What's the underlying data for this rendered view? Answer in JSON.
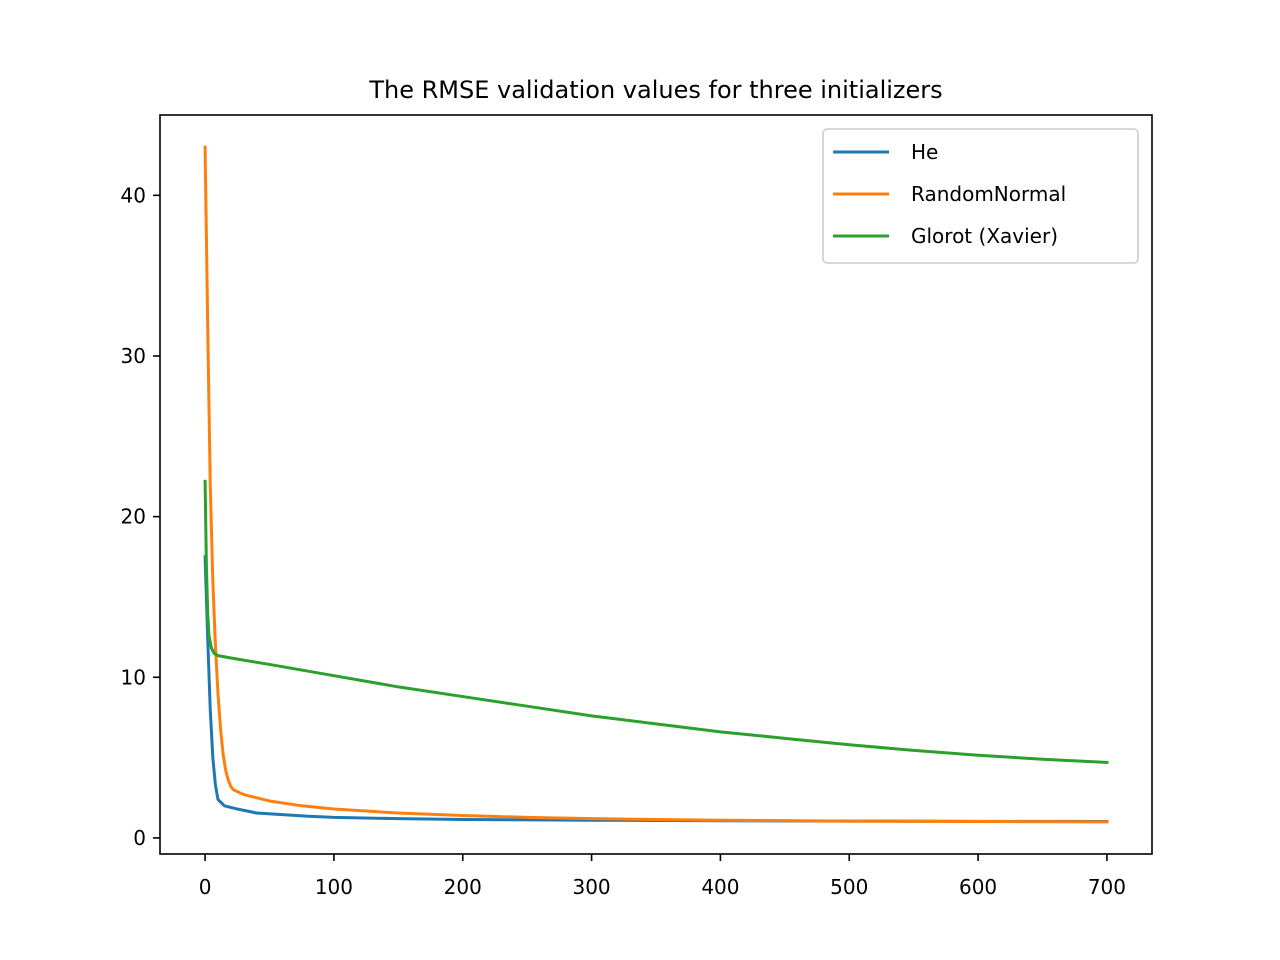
{
  "chart_data": {
    "type": "line",
    "title": "The RMSE validation values for three initializers",
    "xlabel": "",
    "ylabel": "",
    "xlim": [
      -35,
      735
    ],
    "ylim": [
      -1,
      45
    ],
    "xticks": [
      0,
      100,
      200,
      300,
      400,
      500,
      600,
      700
    ],
    "yticks": [
      0,
      10,
      20,
      30,
      40
    ],
    "grid": false,
    "legend_position": "top-right",
    "series": [
      {
        "name": "He",
        "color": "#1f77b4",
        "points": [
          [
            0,
            17.5
          ],
          [
            2,
            12.5
          ],
          [
            4,
            8.0
          ],
          [
            6,
            5.0
          ],
          [
            8,
            3.3
          ],
          [
            10,
            2.4
          ],
          [
            15,
            2.0
          ],
          [
            25,
            1.8
          ],
          [
            40,
            1.55
          ],
          [
            60,
            1.45
          ],
          [
            80,
            1.35
          ],
          [
            100,
            1.28
          ],
          [
            150,
            1.2
          ],
          [
            200,
            1.15
          ],
          [
            300,
            1.1
          ],
          [
            400,
            1.07
          ],
          [
            500,
            1.05
          ],
          [
            600,
            1.03
          ],
          [
            700,
            1.02
          ]
        ]
      },
      {
        "name": "RandomNormal",
        "color": "#ff7f0e",
        "points": [
          [
            0,
            43.0
          ],
          [
            2,
            32.0
          ],
          [
            4,
            22.0
          ],
          [
            6,
            16.0
          ],
          [
            8,
            12.0
          ],
          [
            10,
            9.0
          ],
          [
            12,
            6.8
          ],
          [
            14,
            5.2
          ],
          [
            16,
            4.2
          ],
          [
            18,
            3.6
          ],
          [
            20,
            3.2
          ],
          [
            22,
            3.0
          ],
          [
            30,
            2.7
          ],
          [
            50,
            2.3
          ],
          [
            75,
            2.0
          ],
          [
            100,
            1.8
          ],
          [
            150,
            1.55
          ],
          [
            200,
            1.4
          ],
          [
            250,
            1.28
          ],
          [
            300,
            1.2
          ],
          [
            400,
            1.1
          ],
          [
            500,
            1.05
          ],
          [
            600,
            1.02
          ],
          [
            700,
            1.0
          ]
        ]
      },
      {
        "name": "Glorot (Xavier)",
        "color": "#2ca02c",
        "points": [
          [
            0,
            22.2
          ],
          [
            1,
            17.0
          ],
          [
            2,
            14.0
          ],
          [
            3,
            12.6
          ],
          [
            5,
            11.8
          ],
          [
            7,
            11.5
          ],
          [
            10,
            11.35
          ],
          [
            20,
            11.2
          ],
          [
            50,
            10.8
          ],
          [
            100,
            10.1
          ],
          [
            150,
            9.4
          ],
          [
            200,
            8.8
          ],
          [
            250,
            8.2
          ],
          [
            300,
            7.6
          ],
          [
            350,
            7.1
          ],
          [
            400,
            6.6
          ],
          [
            450,
            6.2
          ],
          [
            500,
            5.8
          ],
          [
            550,
            5.45
          ],
          [
            600,
            5.15
          ],
          [
            650,
            4.9
          ],
          [
            700,
            4.7
          ]
        ]
      }
    ]
  }
}
